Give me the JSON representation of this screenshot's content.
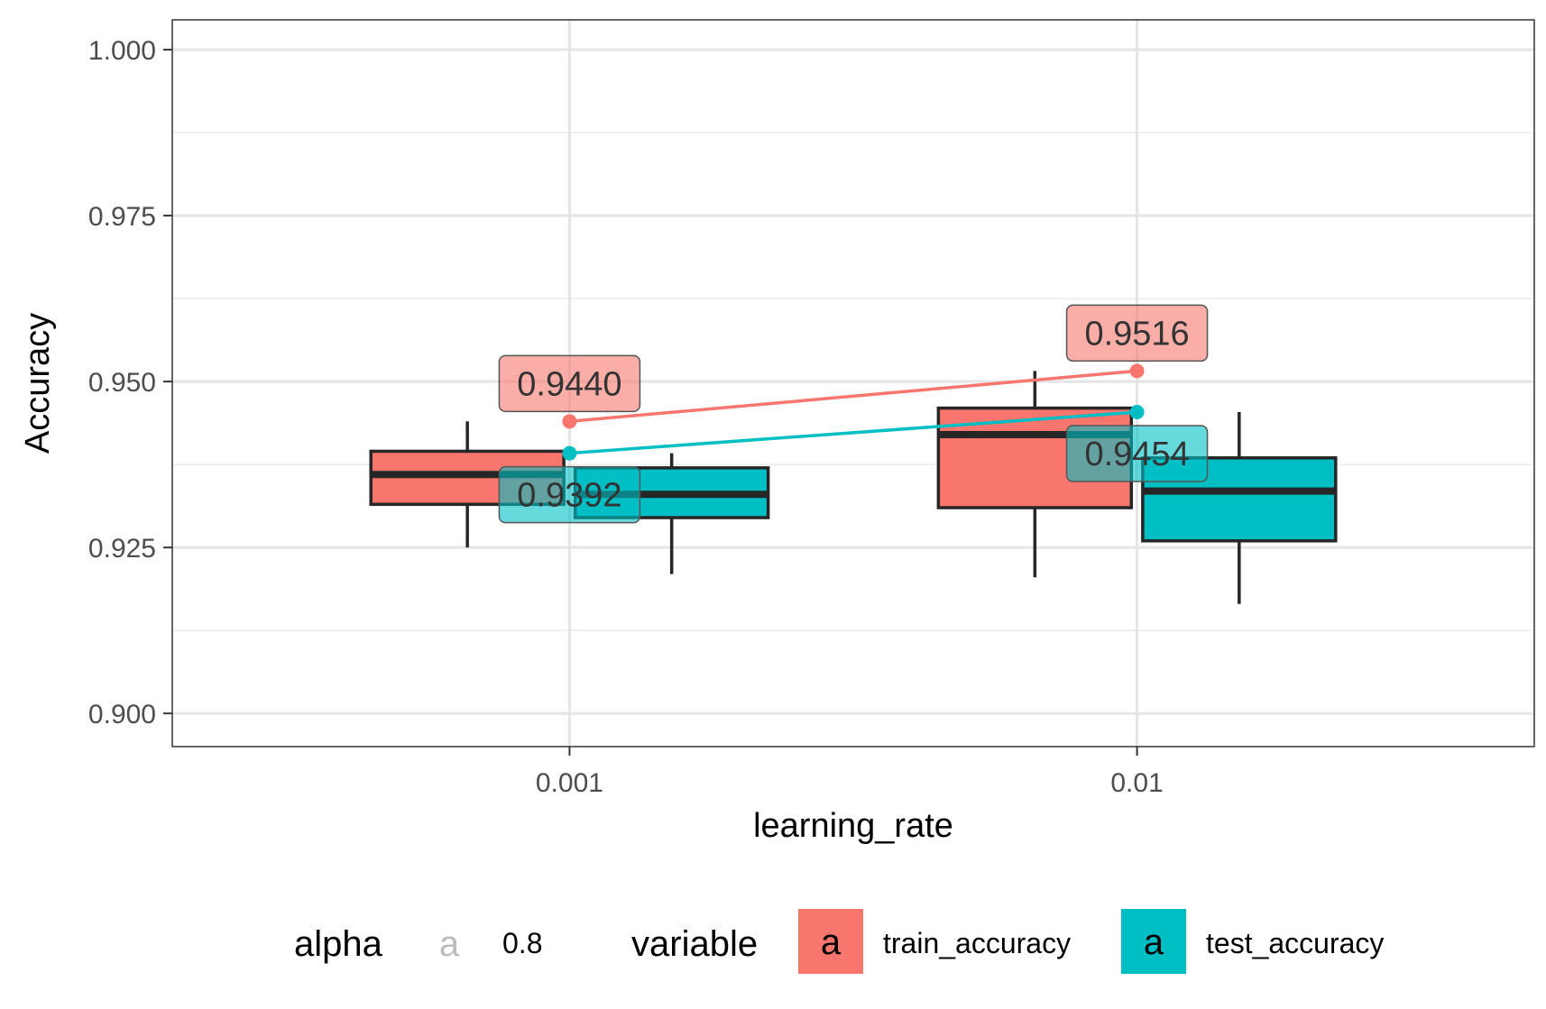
{
  "chart_data": {
    "type": "boxplot",
    "title": "",
    "xlabel": "learning_rate",
    "ylabel": "Accuracy",
    "ylim": [
      0.895,
      1.0045
    ],
    "y_ticks": [
      "1.000",
      "0.975",
      "0.950",
      "0.925",
      "0.900"
    ],
    "y_tick_values": [
      1.0,
      0.975,
      0.95,
      0.925,
      0.9
    ],
    "categories": [
      "0.001",
      "0.01"
    ],
    "grid": true,
    "legend_position": "bottom",
    "series": [
      {
        "name": "train_accuracy",
        "color": "#F8766D",
        "boxes": [
          {
            "category": "0.001",
            "min": 0.925,
            "q1": 0.9315,
            "median": 0.936,
            "q3": 0.9395,
            "max": 0.944
          },
          {
            "category": "0.01",
            "min": 0.9205,
            "q1": 0.931,
            "median": 0.942,
            "q3": 0.946,
            "max": 0.9516
          }
        ],
        "means": [
          0.944,
          0.9516
        ],
        "mean_labels": [
          "0.9440",
          "0.9516"
        ]
      },
      {
        "name": "test_accuracy",
        "color": "#00BFC4",
        "boxes": [
          {
            "category": "0.001",
            "min": 0.921,
            "q1": 0.9295,
            "median": 0.933,
            "q3": 0.937,
            "max": 0.9392
          },
          {
            "category": "0.01",
            "min": 0.9165,
            "q1": 0.926,
            "median": 0.9335,
            "q3": 0.9385,
            "max": 0.9454
          }
        ],
        "means": [
          0.9392,
          0.9454
        ],
        "mean_labels": [
          "0.9392",
          "0.9454"
        ]
      }
    ],
    "legend": {
      "alpha_title": "alpha",
      "alpha_key": "a",
      "alpha_value": "0.8",
      "variable_title": "variable",
      "variable_key": "a"
    }
  }
}
